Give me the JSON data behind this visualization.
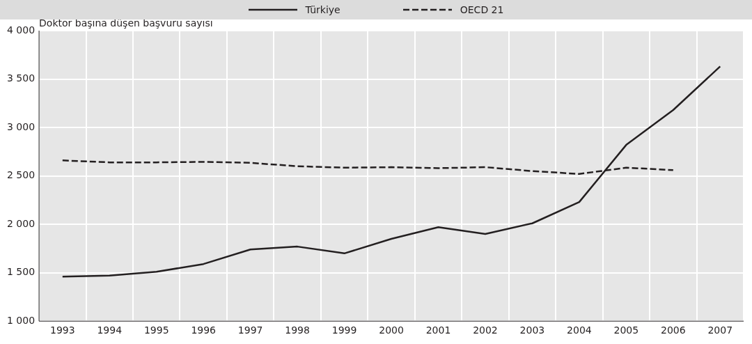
{
  "chart_data": {
    "type": "line",
    "ylabel": "Doktor başına düşen başvuru sayısı",
    "categories": [
      "1993",
      "1994",
      "1995",
      "1996",
      "1997",
      "1998",
      "1999",
      "2000",
      "2001",
      "2002",
      "2003",
      "2004",
      "2005",
      "2006",
      "2007"
    ],
    "series": [
      {
        "name": "Türkiye",
        "color": "#231f20",
        "line_style": "solid",
        "values": [
          1460,
          1470,
          1510,
          1590,
          1740,
          1770,
          1700,
          1850,
          1970,
          1900,
          2010,
          2230,
          2820,
          3180,
          3630
        ]
      },
      {
        "name": "OECD 21",
        "color": "#231f20",
        "line_style": "dashed",
        "values": [
          2660,
          2640,
          2640,
          2645,
          2635,
          2600,
          2585,
          2590,
          2580,
          2590,
          2550,
          2520,
          2585,
          2560,
          null
        ]
      }
    ],
    "ylim": [
      1000,
      4000
    ],
    "yticks": [
      {
        "value": 1000,
        "label": "1 000"
      },
      {
        "value": 1500,
        "label": "1 500"
      },
      {
        "value": 2000,
        "label": "2 000"
      },
      {
        "value": 2500,
        "label": "2 500"
      },
      {
        "value": 3000,
        "label": "3 000"
      },
      {
        "value": 3500,
        "label": "3 500"
      },
      {
        "value": 4000,
        "label": "4 000"
      }
    ],
    "grid": true,
    "legend": "top",
    "marker": "none"
  }
}
